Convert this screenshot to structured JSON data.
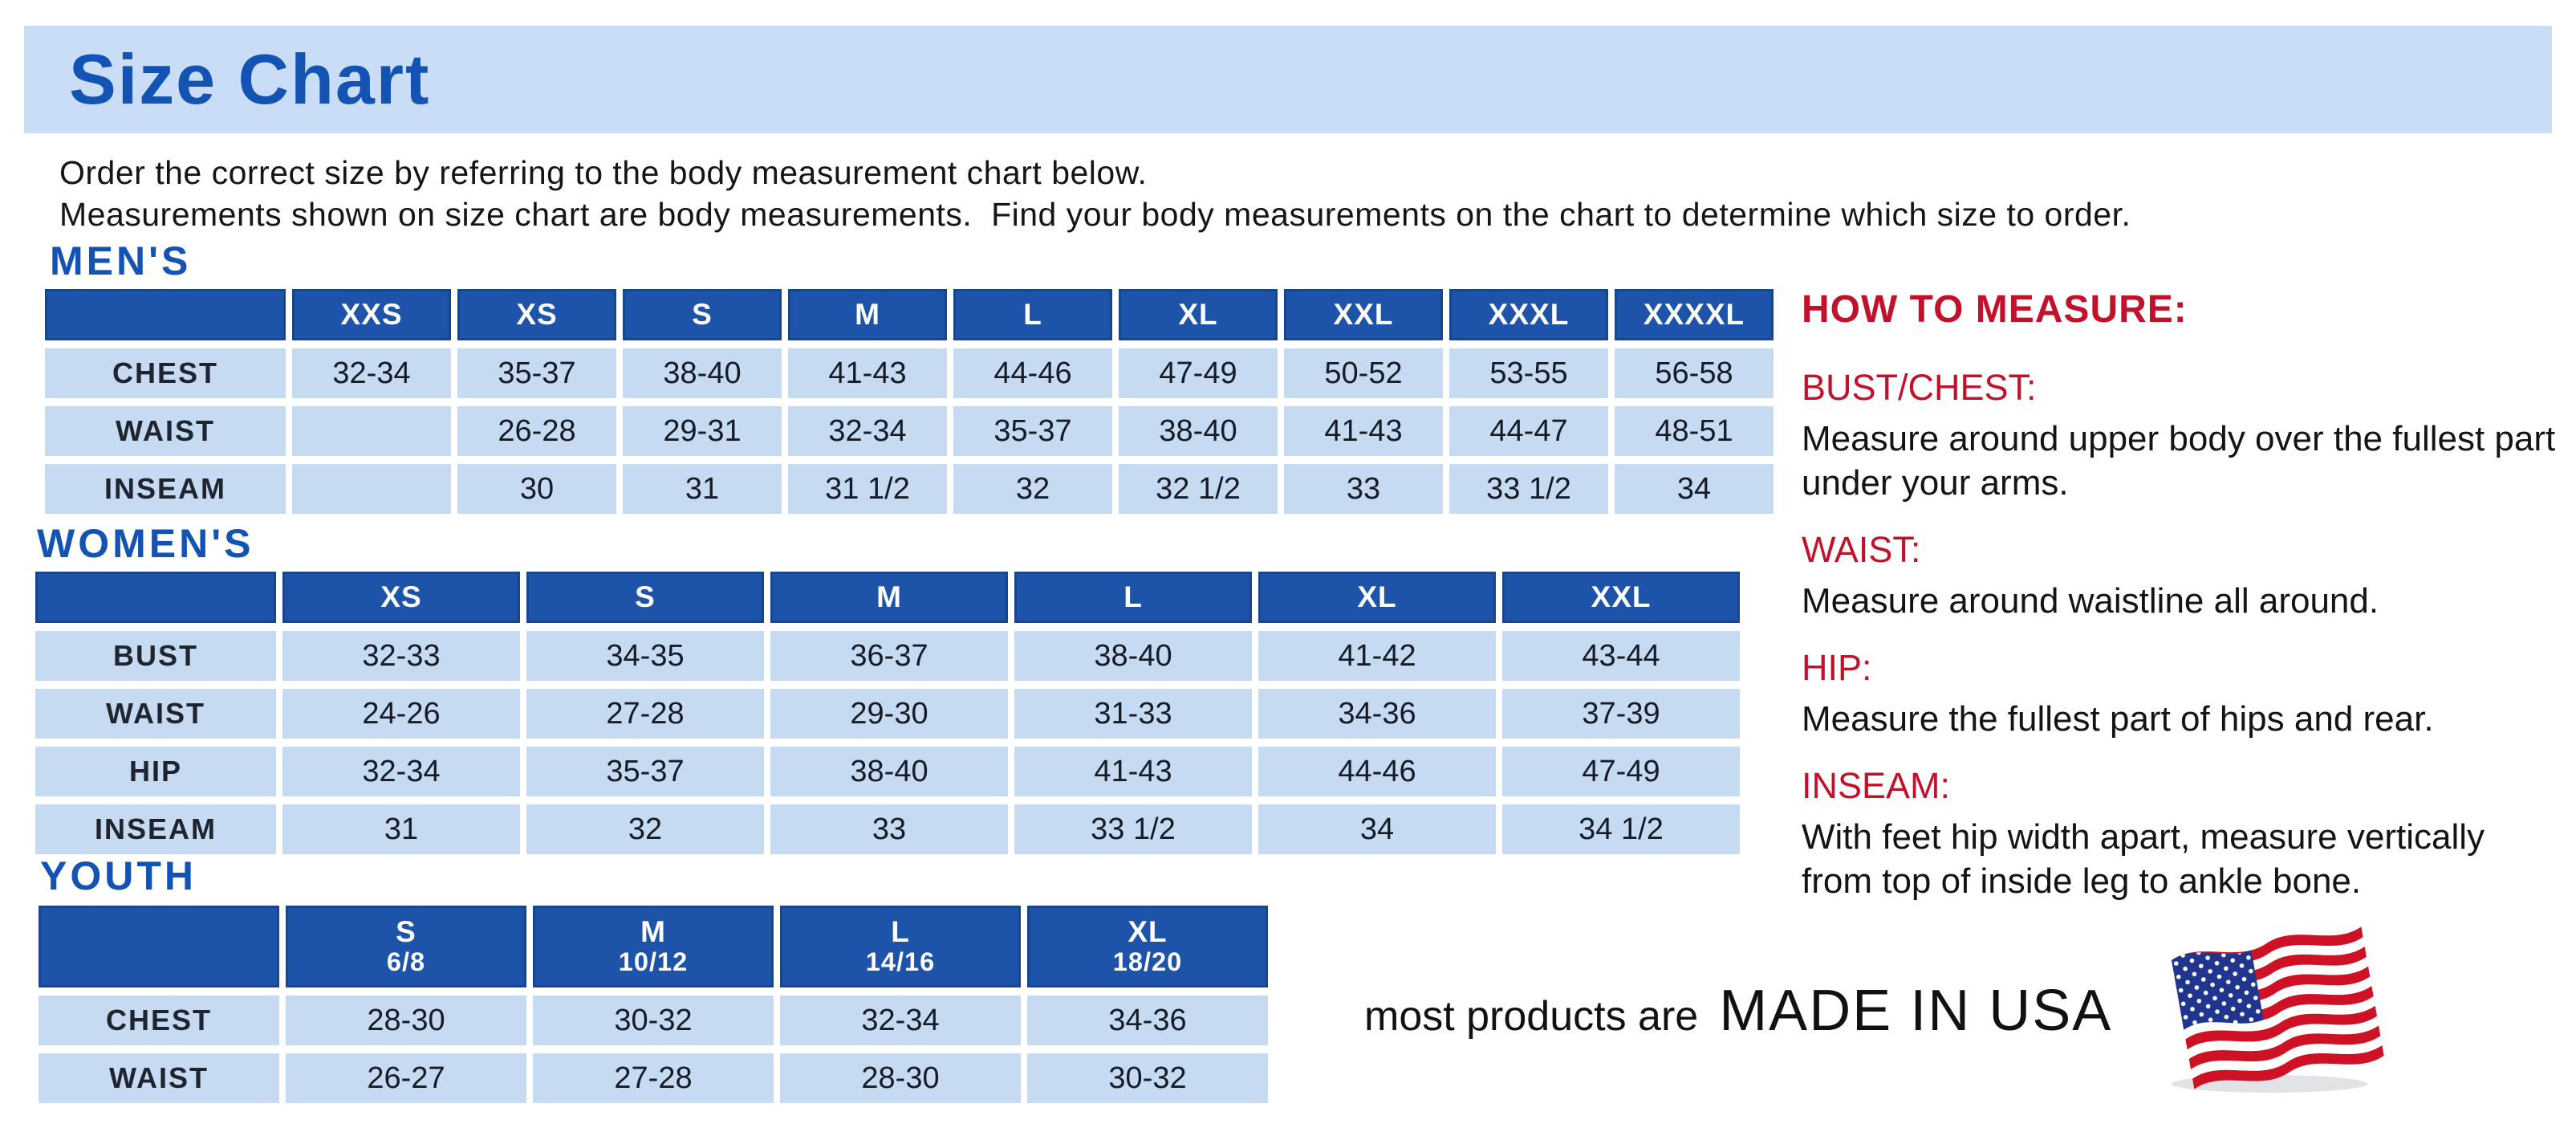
{
  "page": {
    "title": "Size Chart",
    "intro_line1": "Order the correct size by referring to the body measurement chart below.",
    "intro_line2": "Measurements shown on size chart are body measurements.  Find your body measurements on the chart to determine which size to order."
  },
  "tables": [
    {
      "id": "mens",
      "section_label": "MEN'S",
      "columns": [
        "XXS",
        "XS",
        "S",
        "M",
        "L",
        "XL",
        "XXL",
        "XXXL",
        "XXXXL"
      ],
      "rows": [
        {
          "label": "CHEST",
          "values": [
            "32-34",
            "35-37",
            "38-40",
            "41-43",
            "44-46",
            "47-49",
            "50-52",
            "53-55",
            "56-58"
          ]
        },
        {
          "label": "WAIST",
          "values": [
            "",
            "26-28",
            "29-31",
            "32-34",
            "35-37",
            "38-40",
            "41-43",
            "44-47",
            "48-51"
          ]
        },
        {
          "label": "INSEAM",
          "values": [
            "",
            "30",
            "31",
            "31 1/2",
            "32",
            "32 1/2",
            "33",
            "33 1/2",
            "34"
          ]
        }
      ]
    },
    {
      "id": "womens",
      "section_label": "WOMEN'S",
      "columns": [
        "XS",
        "S",
        "M",
        "L",
        "XL",
        "XXL"
      ],
      "rows": [
        {
          "label": "BUST",
          "values": [
            "32-33",
            "34-35",
            "36-37",
            "38-40",
            "41-42",
            "43-44"
          ]
        },
        {
          "label": "WAIST",
          "values": [
            "24-26",
            "27-28",
            "29-30",
            "31-33",
            "34-36",
            "37-39"
          ]
        },
        {
          "label": "HIP",
          "values": [
            "32-34",
            "35-37",
            "38-40",
            "41-43",
            "44-46",
            "47-49"
          ]
        },
        {
          "label": "INSEAM",
          "values": [
            "31",
            "32",
            "33",
            "33 1/2",
            "34",
            "34 1/2"
          ]
        }
      ]
    },
    {
      "id": "youth",
      "section_label": "YOUTH",
      "columns": [
        {
          "size": "S",
          "range": "6/8"
        },
        {
          "size": "M",
          "range": "10/12"
        },
        {
          "size": "L",
          "range": "14/16"
        },
        {
          "size": "XL",
          "range": "18/20"
        }
      ],
      "rows": [
        {
          "label": "CHEST",
          "values": [
            "28-30",
            "30-32",
            "32-34",
            "34-36"
          ]
        },
        {
          "label": "WAIST",
          "values": [
            "26-27",
            "27-28",
            "28-30",
            "30-32"
          ]
        }
      ]
    }
  ],
  "how_to_measure": {
    "heading": "HOW TO MEASURE:",
    "items": [
      {
        "term": "BUST/CHEST:",
        "description": "Measure around upper body over the fullest part under your arms."
      },
      {
        "term": "WAIST:",
        "description": "Measure around waistline all around."
      },
      {
        "term": "HIP:",
        "description": "Measure the fullest part of hips and rear."
      },
      {
        "term": "INSEAM:",
        "description": "With feet hip width apart, measure vertically from top of inside leg to ankle bone."
      }
    ]
  },
  "footer": {
    "made_in_prefix": "most products are",
    "made_in_main": "MADE IN USA",
    "flag_icon": "usa-flag-icon"
  },
  "colors": {
    "banner_blue": "#c9def6",
    "title_blue": "#1253b4",
    "header_blue": "#1d53a8",
    "cell_blue": "#c6dbf2",
    "red": "#c2122b"
  }
}
